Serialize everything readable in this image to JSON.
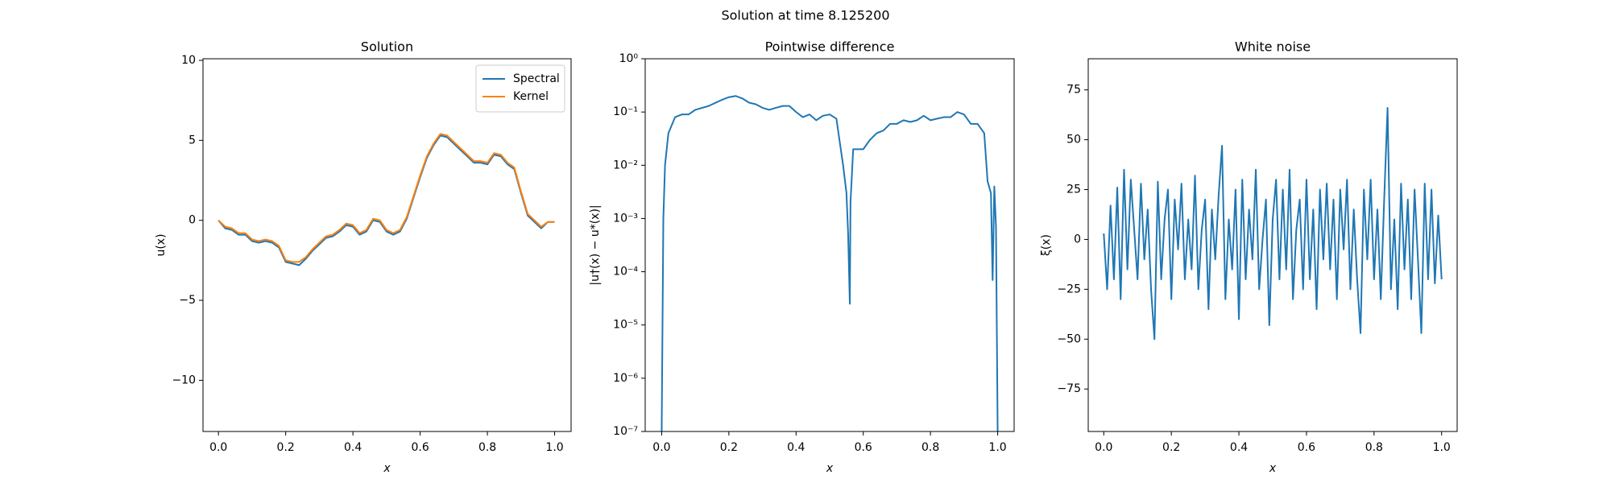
{
  "title": "Solution at time 8.125200",
  "chart_data": [
    {
      "type": "line",
      "title": "Solution",
      "xlabel": "x",
      "ylabel": "u(x)",
      "xlim": [
        -0.046,
        1.049
      ],
      "ylim": [
        -13.2,
        10.1
      ],
      "xticks": [
        {
          "value": 0,
          "label": "0.0"
        },
        0.2,
        0.4,
        0.6,
        0.8,
        {
          "value": 1,
          "label": "1.0"
        }
      ],
      "yticks": [
        {
          "value": -10,
          "label": "−10"
        },
        {
          "value": -5,
          "label": "−5"
        },
        0,
        5,
        10
      ],
      "legend": "upper right",
      "x": [
        0,
        0.02,
        0.04,
        0.06,
        0.08,
        0.1,
        0.12,
        0.14,
        0.16,
        0.18,
        0.2,
        0.22,
        0.24,
        0.26,
        0.28,
        0.3,
        0.32,
        0.34,
        0.36,
        0.38,
        0.4,
        0.42,
        0.44,
        0.46,
        0.48,
        0.5,
        0.52,
        0.54,
        0.56,
        0.58,
        0.6,
        0.62,
        0.64,
        0.66,
        0.68,
        0.7,
        0.72,
        0.74,
        0.76,
        0.78,
        0.8,
        0.82,
        0.84,
        0.86,
        0.88,
        0.9,
        0.92,
        0.94,
        0.96,
        0.98,
        1.0
      ],
      "series": [
        {
          "name": "Spectral",
          "color": "#1f77b4",
          "values": [
            0,
            -0.5,
            -0.6,
            -0.9,
            -0.9,
            -1.3,
            -1.4,
            -1.3,
            -1.4,
            -1.7,
            -2.6,
            -2.7,
            -2.8,
            -2.4,
            -1.9,
            -1.5,
            -1.1,
            -1.0,
            -0.7,
            -0.3,
            -0.4,
            -0.9,
            -0.7,
            0.0,
            -0.1,
            -0.7,
            -0.9,
            -0.7,
            0.1,
            1.4,
            2.7,
            3.9,
            4.7,
            5.3,
            5.2,
            4.8,
            4.4,
            4.0,
            3.6,
            3.6,
            3.5,
            4.1,
            4.0,
            3.5,
            3.2,
            1.7,
            0.3,
            -0.1,
            -0.5,
            -0.1,
            -0.1
          ]
        },
        {
          "name": "Kernel",
          "color": "#ff7f0e",
          "values": [
            0,
            -0.4,
            -0.5,
            -0.8,
            -0.8,
            -1.2,
            -1.3,
            -1.2,
            -1.3,
            -1.6,
            -2.5,
            -2.6,
            -2.6,
            -2.3,
            -1.8,
            -1.4,
            -1.0,
            -0.9,
            -0.6,
            -0.2,
            -0.3,
            -0.8,
            -0.6,
            0.1,
            0.0,
            -0.6,
            -0.8,
            -0.6,
            0.2,
            1.5,
            2.8,
            4.0,
            4.8,
            5.4,
            5.3,
            4.9,
            4.5,
            4.1,
            3.7,
            3.7,
            3.6,
            4.2,
            4.1,
            3.6,
            3.3,
            1.8,
            0.4,
            0.0,
            -0.4,
            -0.1,
            -0.1
          ]
        }
      ]
    },
    {
      "type": "line",
      "title": "Pointwise difference",
      "xlabel": "x",
      "ylabel": "|u†(x) − u*(x)|",
      "yscale": "log",
      "xlim": [
        -0.049,
        1.049
      ],
      "ylim": [
        1e-07,
        1
      ],
      "xticks": [
        {
          "value": 0,
          "label": "0.0"
        },
        0.2,
        0.4,
        0.6,
        0.8,
        {
          "value": 1,
          "label": "1.0"
        }
      ],
      "yticks": [
        {
          "value": 1e-07,
          "label": "10⁻⁷"
        },
        {
          "value": 1e-06,
          "label": "10⁻⁶"
        },
        {
          "value": 1e-05,
          "label": "10⁻⁵"
        },
        {
          "value": 0.0001,
          "label": "10⁻⁴"
        },
        {
          "value": 0.001,
          "label": "10⁻³"
        },
        {
          "value": 0.01,
          "label": "10⁻²"
        },
        {
          "value": 0.1,
          "label": "10⁻¹"
        },
        {
          "value": 1,
          "label": "10⁰"
        }
      ],
      "x": [
        0,
        0.005,
        0.01,
        0.02,
        0.04,
        0.06,
        0.08,
        0.1,
        0.14,
        0.18,
        0.2,
        0.22,
        0.24,
        0.26,
        0.28,
        0.3,
        0.32,
        0.34,
        0.36,
        0.38,
        0.4,
        0.42,
        0.44,
        0.46,
        0.48,
        0.5,
        0.52,
        0.54,
        0.55,
        0.555,
        0.56,
        0.562,
        0.57,
        0.58,
        0.6,
        0.62,
        0.64,
        0.66,
        0.68,
        0.7,
        0.72,
        0.74,
        0.76,
        0.78,
        0.8,
        0.82,
        0.84,
        0.86,
        0.88,
        0.9,
        0.92,
        0.94,
        0.96,
        0.97,
        0.98,
        0.985,
        0.99,
        0.995,
        1.0
      ],
      "series": [
        {
          "color": "#1f77b4",
          "values": [
            1e-07,
            0.001,
            0.01,
            0.04,
            0.08,
            0.09,
            0.09,
            0.11,
            0.13,
            0.17,
            0.19,
            0.2,
            0.18,
            0.15,
            0.14,
            0.12,
            0.11,
            0.12,
            0.13,
            0.13,
            0.1,
            0.08,
            0.09,
            0.07,
            0.085,
            0.09,
            0.075,
            0.01,
            0.003,
            0.0005,
            2.5e-05,
            0.002,
            0.02,
            0.02,
            0.02,
            0.03,
            0.04,
            0.045,
            0.06,
            0.06,
            0.07,
            0.065,
            0.07,
            0.085,
            0.07,
            0.075,
            0.08,
            0.08,
            0.1,
            0.09,
            0.06,
            0.06,
            0.04,
            0.005,
            0.003,
            7e-05,
            0.004,
            0.0007,
            1e-07
          ]
        }
      ]
    },
    {
      "type": "line",
      "title": "White noise",
      "xlabel": "x",
      "ylabel": "ξ(x)",
      "xlim": [
        -0.046,
        1.046
      ],
      "ylim": [
        -96.3,
        90.6
      ],
      "xticks": [
        {
          "value": 0,
          "label": "0.0"
        },
        0.2,
        0.4,
        0.6,
        0.8,
        {
          "value": 1,
          "label": "1.0"
        }
      ],
      "yticks": [
        {
          "value": -75,
          "label": "−75"
        },
        {
          "value": -50,
          "label": "−50"
        },
        {
          "value": -25,
          "label": "−25"
        },
        0,
        25,
        50,
        75
      ],
      "x": [
        0,
        0.01,
        0.02,
        0.03,
        0.04,
        0.05,
        0.06,
        0.07,
        0.08,
        0.09,
        0.1,
        0.11,
        0.12,
        0.13,
        0.14,
        0.15,
        0.16,
        0.17,
        0.18,
        0.19,
        0.2,
        0.21,
        0.22,
        0.23,
        0.24,
        0.25,
        0.26,
        0.27,
        0.28,
        0.29,
        0.3,
        0.31,
        0.32,
        0.33,
        0.34,
        0.35,
        0.36,
        0.37,
        0.38,
        0.39,
        0.4,
        0.41,
        0.42,
        0.43,
        0.44,
        0.45,
        0.46,
        0.47,
        0.48,
        0.49,
        0.5,
        0.51,
        0.52,
        0.53,
        0.54,
        0.55,
        0.56,
        0.57,
        0.58,
        0.59,
        0.6,
        0.61,
        0.62,
        0.63,
        0.64,
        0.65,
        0.66,
        0.67,
        0.68,
        0.69,
        0.7,
        0.71,
        0.72,
        0.73,
        0.74,
        0.75,
        0.76,
        0.77,
        0.78,
        0.79,
        0.8,
        0.81,
        0.82,
        0.83,
        0.84,
        0.85,
        0.86,
        0.87,
        0.88,
        0.89,
        0.9,
        0.91,
        0.92,
        0.93,
        0.94,
        0.95,
        0.96,
        0.97,
        0.98,
        0.99,
        1.0
      ],
      "series": [
        {
          "color": "#1f77b4",
          "values": [
            3,
            -25,
            17,
            -20,
            26,
            -30,
            35,
            -15,
            30,
            5,
            -20,
            28,
            -10,
            15,
            -25,
            -50,
            29,
            -20,
            10,
            25,
            -30,
            20,
            -5,
            28,
            -20,
            10,
            -15,
            32,
            -25,
            5,
            20,
            -35,
            15,
            -10,
            22,
            47,
            -30,
            10,
            -15,
            25,
            -40,
            30,
            -20,
            15,
            -10,
            35,
            -25,
            0,
            20,
            -43,
            10,
            30,
            -20,
            25,
            -15,
            35,
            -30,
            5,
            20,
            -25,
            30,
            -20,
            15,
            -35,
            25,
            -10,
            28,
            -15,
            20,
            -30,
            25,
            -5,
            30,
            -25,
            15,
            -20,
            -47,
            25,
            -10,
            30,
            -20,
            15,
            -30,
            20,
            66,
            -25,
            10,
            -35,
            28,
            -15,
            20,
            -30,
            25,
            -10,
            -47,
            28,
            -20,
            25,
            -22,
            12,
            -20
          ]
        }
      ]
    }
  ]
}
